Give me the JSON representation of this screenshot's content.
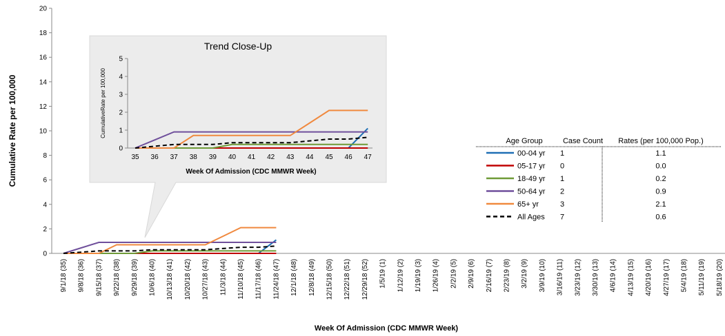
{
  "chart_data": [
    {
      "type": "line",
      "y_label": "Cumulative Rate per 100,000",
      "x_label": "Week Of Admission  (CDC MMWR Week)",
      "categories": [
        "9/1/18 (35)",
        "9/8/18 (36)",
        "9/15/18 (37)",
        "9/22/18 (38)",
        "9/29/18 (39)",
        "10/6/18 (40)",
        "10/13/18 (41)",
        "10/20/18 (42)",
        "10/27/18 (43)",
        "11/3/18 (44)",
        "11/10/18 (45)",
        "11/17/18 (46)",
        "11/24/18 (47)",
        "12/1/18 (48)",
        "12/8/18 (49)",
        "12/15/18 (50)",
        "12/22/18 (51)",
        "12/29/18 (52)",
        "1/5/19 (1)",
        "1/12/19 (2)",
        "1/19/19 (3)",
        "1/26/19 (4)",
        "2/2/19 (5)",
        "2/9/19 (6)",
        "2/16/19 (7)",
        "2/23/19 (8)",
        "3/2/19 (9)",
        "3/9/19 (10)",
        "3/16/19 (11)",
        "3/23/19 (12)",
        "3/30/19 (13)",
        "4/6/19 (14)",
        "4/13/19 (15)",
        "4/20/19 (16)",
        "4/27/19 (17)",
        "5/4/19 (18)",
        "5/11/19 (19)",
        "5/18/19 (20)"
      ],
      "ylim": [
        0,
        20
      ],
      "yticks": [
        0,
        2,
        4,
        6,
        8,
        10,
        12,
        14,
        16,
        18,
        20
      ],
      "legend_headers": [
        "Age Group",
        "Case Count",
        "Rates (per 100,000 Pop.)"
      ],
      "series": [
        {
          "name": "00-04 yr",
          "color": "#1f6fb5",
          "case_count": 1,
          "rate_label": "1.1",
          "values": [
            0,
            0,
            0,
            0,
            0,
            0,
            0,
            0,
            0,
            0,
            0,
            0,
            1.1,
            null,
            null,
            null,
            null,
            null,
            null,
            null,
            null,
            null,
            null,
            null,
            null,
            null,
            null,
            null,
            null,
            null,
            null,
            null,
            null,
            null,
            null,
            null,
            null,
            null
          ]
        },
        {
          "name": "05-17 yr",
          "color": "#c00000",
          "case_count": 0,
          "rate_label": "0.0",
          "values": [
            0,
            0,
            0,
            0,
            0,
            0,
            0,
            0,
            0,
            0,
            0,
            0,
            0,
            null,
            null,
            null,
            null,
            null,
            null,
            null,
            null,
            null,
            null,
            null,
            null,
            null,
            null,
            null,
            null,
            null,
            null,
            null,
            null,
            null,
            null,
            null,
            null,
            null
          ]
        },
        {
          "name": "18-49 yr",
          "color": "#6e9a36",
          "case_count": 1,
          "rate_label": "0.2",
          "values": [
            0,
            0,
            0,
            0,
            0,
            0.2,
            0.2,
            0.2,
            0.2,
            0.2,
            0.2,
            0.2,
            0.2,
            null,
            null,
            null,
            null,
            null,
            null,
            null,
            null,
            null,
            null,
            null,
            null,
            null,
            null,
            null,
            null,
            null,
            null,
            null,
            null,
            null,
            null,
            null,
            null,
            null
          ]
        },
        {
          "name": "50-64 yr",
          "color": "#6f4f9b",
          "case_count": 2,
          "rate_label": "0.9",
          "values": [
            0,
            0.45,
            0.9,
            0.9,
            0.9,
            0.9,
            0.9,
            0.9,
            0.9,
            0.9,
            0.9,
            0.9,
            0.9,
            null,
            null,
            null,
            null,
            null,
            null,
            null,
            null,
            null,
            null,
            null,
            null,
            null,
            null,
            null,
            null,
            null,
            null,
            null,
            null,
            null,
            null,
            null,
            null,
            null
          ]
        },
        {
          "name": "65+ yr",
          "color": "#f0893e",
          "case_count": 3,
          "rate_label": "2.1",
          "values": [
            0,
            0,
            0,
            0.7,
            0.7,
            0.7,
            0.7,
            0.7,
            0.7,
            1.4,
            2.1,
            2.1,
            2.1,
            null,
            null,
            null,
            null,
            null,
            null,
            null,
            null,
            null,
            null,
            null,
            null,
            null,
            null,
            null,
            null,
            null,
            null,
            null,
            null,
            null,
            null,
            null,
            null,
            null
          ]
        },
        {
          "name": "All Ages",
          "color": "#000000",
          "dashed": true,
          "case_count": 7,
          "rate_label": "0.6",
          "values": [
            0,
            0.1,
            0.2,
            0.2,
            0.2,
            0.3,
            0.3,
            0.3,
            0.3,
            0.4,
            0.5,
            0.5,
            0.6,
            null,
            null,
            null,
            null,
            null,
            null,
            null,
            null,
            null,
            null,
            null,
            null,
            null,
            null,
            null,
            null,
            null,
            null,
            null,
            null,
            null,
            null,
            null,
            null,
            null
          ]
        }
      ]
    },
    {
      "type": "line",
      "title": "Trend Close-Up",
      "y_label": "CumulativeRate per 100,000",
      "x_label": "Week Of Admission (CDC MMWR Week)",
      "categories": [
        "35",
        "36",
        "37",
        "38",
        "39",
        "40",
        "41",
        "42",
        "43",
        "44",
        "45",
        "46",
        "47"
      ],
      "ylim": [
        0,
        5
      ],
      "yticks": [
        0,
        1,
        2,
        3,
        4,
        5
      ]
    }
  ]
}
